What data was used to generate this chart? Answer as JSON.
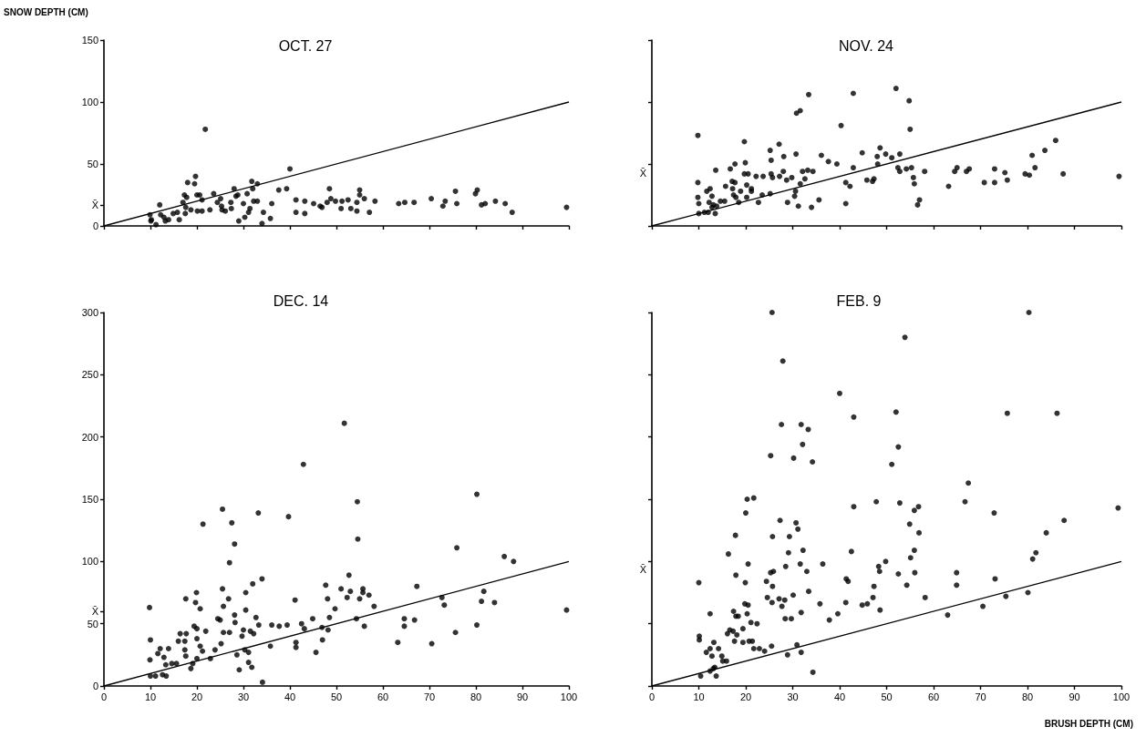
{
  "chart_data": [
    {
      "type": "scatter",
      "title": "OCT. 27",
      "ylabel": "SNOW DEPTH (CM)",
      "xlim": [
        0,
        100
      ],
      "xticks": [
        0,
        10,
        20,
        30,
        40,
        50,
        60,
        70,
        80,
        90,
        100
      ],
      "ylim": [
        0,
        150
      ],
      "yticks": [
        0,
        {
          "value": 17,
          "label": "X̄"
        },
        50,
        100,
        150
      ],
      "tick_labels": "y",
      "grid": false,
      "marker": "circle",
      "series": [
        {
          "color": "#000000",
          "x": [
            21.8,
            40,
            19.7,
            18,
            19.5,
            31.8,
            33,
            17.3,
            17.8,
            20,
            20.6,
            23.6,
            28,
            28.4,
            28.8,
            30.8,
            32,
            37.6,
            39.3,
            48.5,
            55,
            55,
            56,
            75.6,
            80.3,
            79.9,
            12,
            17,
            21.1,
            25.1,
            25.3,
            27.3,
            30,
            32.2,
            33,
            36.1,
            41.3,
            43.2,
            45.1,
            46.5,
            48,
            48.8,
            49.8,
            51.2,
            52.5,
            53.1,
            54.4,
            54.4,
            57.1,
            58.3,
            63.4,
            64.7,
            66.7,
            70.4,
            72.9,
            73.4,
            75.9,
            81.2,
            82,
            84.2,
            86.3,
            87.8,
            99.5,
            41.3,
            43.2,
            46.9,
            51,
            9.9,
            10.2,
            10.1,
            11.2,
            12.2,
            12.9,
            13.2,
            13.9,
            14.9,
            15.8,
            16.2,
            17.5,
            17.6,
            18.7,
            20.1,
            21.1,
            22.8,
            24.4,
            25.4,
            26.1,
            27.4,
            29,
            30.3,
            31.1,
            31.4,
            34,
            34.3,
            35.8
          ],
          "values": [
            78,
            46,
            40,
            35,
            34,
            36,
            34,
            25,
            23,
            25,
            25,
            26,
            30,
            24,
            25,
            26,
            30,
            29,
            30,
            30,
            29,
            25,
            22,
            28,
            29,
            26,
            17,
            19,
            21,
            22,
            16,
            19,
            18,
            20,
            20,
            18,
            21,
            20,
            18,
            16,
            19,
            22,
            20,
            20,
            21,
            14,
            19,
            12,
            11,
            20,
            18,
            19,
            19,
            22,
            16,
            20,
            18,
            17,
            18,
            20,
            18,
            11,
            15,
            11,
            10,
            15,
            14,
            9,
            5,
            4,
            1,
            9,
            7,
            4,
            5,
            10,
            11,
            5,
            10,
            15,
            13,
            12,
            12,
            13,
            19,
            13,
            12,
            14,
            4,
            7,
            11,
            14,
            2,
            11,
            6
          ]
        },
        {
          "type": "line",
          "color": "#000000",
          "marker": "none",
          "x": [
            0,
            100
          ],
          "values": [
            0,
            100
          ]
        }
      ]
    },
    {
      "type": "scatter",
      "title": "NOV. 24",
      "xlim": [
        0,
        100
      ],
      "xticks": [
        0,
        10,
        20,
        30,
        40,
        50,
        60,
        70,
        80,
        90,
        100
      ],
      "ylim": [
        0,
        150
      ],
      "yticks": [
        0,
        50,
        100,
        150
      ],
      "tick_labels": false,
      "grid": false,
      "marker": "circle",
      "annotations": [
        "X̄"
      ],
      "series": [
        {
          "color": "#000000",
          "x": [
            52,
            33.4,
            42.9,
            54.8,
            30.8,
            31.6,
            40.3,
            55,
            9.8,
            19.7,
            27.1,
            25.2,
            28.1,
            30.7,
            36.1,
            44.8,
            48.6,
            49.8,
            52.8,
            86,
            83.7,
            81,
            81.6,
            17.7,
            19.9,
            16.7,
            13.6,
            25.4,
            37.6,
            39.4,
            42.9,
            48.1,
            48,
            51.1,
            52.4,
            52.8,
            54.2,
            55.3,
            55.7,
            55.9,
            57,
            56.6,
            58.1,
            63.2,
            64.5,
            65,
            67,
            67.6,
            70.8,
            73,
            73,
            75.2,
            75.7,
            79.5,
            80.4,
            87.6,
            99.5,
            20.5,
            19.7,
            22.2,
            23.7,
            25.4,
            25.7,
            27.2,
            28,
            28.7,
            29.8,
            32.1,
            33.2,
            34.3,
            32.6,
            31.6,
            30.6,
            30.4,
            28.9,
            31.2,
            34,
            35.6,
            41.3,
            41.3,
            42.2,
            47,
            47.3,
            45.8,
            9.8,
            9.8,
            10,
            11.7,
            12.4,
            12.8,
            12.2,
            13.1,
            14.6,
            15.5,
            15.7,
            17.1,
            17.2,
            17.7,
            17.4,
            17.9,
            18.9,
            20.2,
            21.2,
            21.2,
            20.2,
            18.5,
            22.7,
            23.5,
            25.2,
            10,
            11.2,
            12,
            13.5,
            12.8,
            13.8
          ],
          "values": [
            111,
            106,
            107,
            101,
            91,
            93,
            81,
            78,
            73,
            68,
            66,
            61,
            56,
            58,
            57,
            59,
            63,
            58,
            58,
            69,
            61,
            57,
            47,
            50,
            51,
            46,
            45,
            53,
            52,
            50,
            47,
            50,
            56,
            55,
            47,
            44,
            46,
            47,
            39,
            34,
            21,
            17,
            44,
            32,
            44,
            47,
            44,
            46,
            35,
            35,
            46,
            43,
            37,
            42,
            41,
            42,
            40,
            42,
            42,
            40,
            40,
            42,
            39,
            40,
            44,
            37,
            39,
            44,
            45,
            44,
            38,
            34,
            28,
            24,
            19,
            16,
            15,
            21,
            18,
            35,
            32,
            36,
            38,
            37,
            35,
            23,
            18,
            28,
            30,
            24,
            19,
            17,
            20,
            20,
            32,
            36,
            30,
            35,
            25,
            23,
            28,
            33,
            30,
            28,
            23,
            19,
            19,
            25,
            26,
            10,
            11,
            11,
            10,
            15,
            16
          ]
        },
        {
          "type": "line",
          "color": "#000000",
          "marker": "none",
          "x": [
            0,
            100
          ],
          "values": [
            0,
            100
          ]
        }
      ]
    },
    {
      "type": "scatter",
      "title": "DEC. 14",
      "xlim": [
        0,
        100
      ],
      "xticks": [
        0,
        10,
        20,
        30,
        40,
        50,
        60,
        70,
        80,
        90,
        100
      ],
      "ylim": [
        0,
        300
      ],
      "yticks": [
        0,
        50,
        {
          "value": 60,
          "label": "X̄"
        },
        100,
        150,
        200,
        250,
        300
      ],
      "grid": false,
      "marker": "circle",
      "series": [
        {
          "color": "#000000",
          "x": [
            51.7,
            42.9,
            54.5,
            80.2,
            25.5,
            33.2,
            39.7,
            21.3,
            27.5,
            28.1,
            54.6,
            27,
            75.9,
            86.1,
            88.1,
            34,
            32,
            52.7,
            25.5,
            47.7,
            51,
            53,
            55.7,
            55.7,
            57,
            67.3,
            81.7,
            81.2,
            84,
            73.2,
            72.7,
            99.5,
            9.8,
            19.9,
            17.6,
            19.7,
            20.7,
            26.8,
            25.7,
            30.5,
            30.5,
            41.1,
            48.1,
            49.7,
            52.3,
            55,
            58.1,
            24.5,
            25,
            28.1,
            28.2,
            32.7,
            33.3,
            36.1,
            37.7,
            39.4,
            42.5,
            43.1,
            44.9,
            46.9,
            48.5,
            48.2,
            54.3,
            56,
            64.6,
            64.6,
            66.8,
            80.2,
            75.6,
            63.2,
            70.5,
            47,
            45.6,
            41.3,
            41.3,
            35.8,
            16.4,
            17.7,
            19.4,
            20,
            21.9,
            20,
            20.7,
            21.2,
            20,
            17.4,
            17.4,
            17.6,
            16,
            13.9,
            12.1,
            11.6,
            12.9,
            13.3,
            14.6,
            15.6,
            10,
            9.9,
            10,
            11.1,
            12.6,
            13.4,
            18.7,
            19.1,
            22.9,
            23.9,
            25.2,
            25.7,
            27,
            29.7,
            30,
            31.5,
            32.2,
            28.6,
            30.3,
            31.1,
            31.1,
            31.8,
            29.1,
            34.1
          ],
          "values": [
            211,
            178,
            148,
            154,
            142,
            139,
            136,
            130,
            131,
            114,
            118,
            99,
            111,
            104,
            100,
            86,
            82,
            89,
            78,
            81,
            78,
            76,
            78,
            75,
            73,
            80,
            76,
            68,
            67,
            65,
            71,
            61,
            63,
            75,
            70,
            67,
            62,
            70,
            64,
            75,
            61,
            69,
            70,
            62,
            71,
            70,
            64,
            54,
            53,
            57,
            51,
            55,
            49,
            49,
            48,
            49,
            50,
            46,
            54,
            47,
            55,
            45,
            54,
            48,
            54,
            48,
            53,
            49,
            43,
            35,
            34,
            37,
            27,
            35,
            31,
            32,
            42,
            42,
            48,
            46,
            44,
            38,
            32,
            28,
            22,
            36,
            29,
            24,
            36,
            30,
            30,
            26,
            23,
            17,
            18,
            18,
            37,
            21,
            8,
            8,
            9,
            8,
            14,
            18,
            22,
            29,
            34,
            43,
            43,
            40,
            45,
            44,
            42,
            25,
            29,
            27,
            19,
            15,
            13,
            3
          ]
        },
        {
          "type": "line",
          "color": "#000000",
          "marker": "none",
          "x": [
            0,
            100
          ],
          "values": [
            0,
            100
          ]
        }
      ]
    },
    {
      "type": "scatter",
      "title": "FEB. 9",
      "xlabel": "BRUSH DEPTH (CM)",
      "xlim": [
        0,
        100
      ],
      "xticks": [
        0,
        10,
        20,
        30,
        40,
        50,
        60,
        70,
        80,
        90,
        100
      ],
      "ylim": [
        0,
        300
      ],
      "yticks": [
        0,
        50,
        100,
        150,
        200,
        250,
        300
      ],
      "tick_labels": "x",
      "grid": false,
      "marker": "circle",
      "annotations": [
        "X̄"
      ],
      "series": [
        {
          "color": "#000000",
          "x": [
            25.6,
            80.3,
            53.9,
            27.9,
            40,
            52,
            75.7,
            86.3,
            43,
            27.6,
            31.8,
            33.3,
            32.1,
            52.5,
            30.2,
            34.2,
            25.3,
            51.1,
            67.4,
            20.3,
            21.7,
            20,
            47.8,
            52.8,
            66.7,
            43,
            55.9,
            56.8,
            99.3,
            72.9,
            87.8,
            54.9,
            56.9,
            84,
            27.3,
            30.7,
            31.1,
            17.8,
            25.7,
            29.3,
            16.3,
            29.1,
            32.2,
            42.5,
            55.9,
            55.1,
            49.8,
            81.8,
            81.1,
            20.5,
            31.6,
            36.4,
            28.5,
            33,
            48.3,
            48.5,
            17.9,
            25.3,
            25.9,
            52.5,
            56,
            64.9,
            64.9,
            10,
            19.9,
            24.4,
            25.7,
            41.4,
            41.8,
            47.3,
            54.3,
            73.1,
            58.2,
            80.1,
            75.4,
            33.4,
            24.6,
            27.1,
            28.3,
            25.6,
            27.7,
            30.1,
            35.8,
            41.3,
            44.8,
            45.9,
            47.1,
            48.6,
            39.6,
            37.8,
            31.8,
            28.4,
            29.7,
            19.8,
            20.5,
            20.3,
            17.4,
            17.9,
            18.4,
            21.1,
            22.4,
            12.4,
            19.4,
            16.6,
            17.3,
            16.1,
            18.1,
            17.6,
            19.4,
            20.7,
            21.4,
            21.7,
            22.9,
            24,
            25.5,
            10.1,
            10.1,
            11.6,
            12.4,
            13.2,
            12.8,
            14.2,
            14.9,
            15.1,
            15.9,
            13.4,
            13.1,
            12.4,
            13.7,
            10.4,
            30.9,
            31.8,
            28.9,
            34.3,
            63,
            70.5
          ],
          "values": [
            300,
            300,
            280,
            261,
            235,
            220,
            219,
            219,
            216,
            210,
            210,
            206,
            194,
            192,
            183,
            180,
            185,
            178,
            163,
            150,
            151,
            139,
            148,
            147,
            148,
            144,
            141,
            144,
            143,
            139,
            133,
            130,
            123,
            123,
            133,
            131,
            126,
            121,
            120,
            120,
            106,
            107,
            109,
            108,
            109,
            103,
            100,
            107,
            102,
            98,
            98,
            98,
            96,
            92,
            96,
            92,
            89,
            91,
            92,
            90,
            91,
            91,
            81,
            83,
            83,
            84,
            80,
            86,
            84,
            80,
            81,
            86,
            71,
            75,
            72,
            76,
            71,
            70,
            69,
            67,
            64,
            73,
            66,
            67,
            65,
            66,
            71,
            61,
            58,
            53,
            59,
            54,
            54,
            66,
            65,
            58,
            60,
            56,
            56,
            51,
            50,
            58,
            46,
            45,
            44,
            42,
            41,
            36,
            35,
            36,
            36,
            30,
            30,
            28,
            32,
            40,
            37,
            27,
            30,
            35,
            24,
            30,
            24,
            20,
            20,
            15,
            14,
            12,
            8,
            8,
            33,
            27,
            25,
            11,
            57,
            64
          ]
        },
        {
          "type": "line",
          "color": "#000000",
          "marker": "none",
          "x": [
            0,
            100
          ],
          "values": [
            0,
            100
          ]
        }
      ]
    }
  ]
}
